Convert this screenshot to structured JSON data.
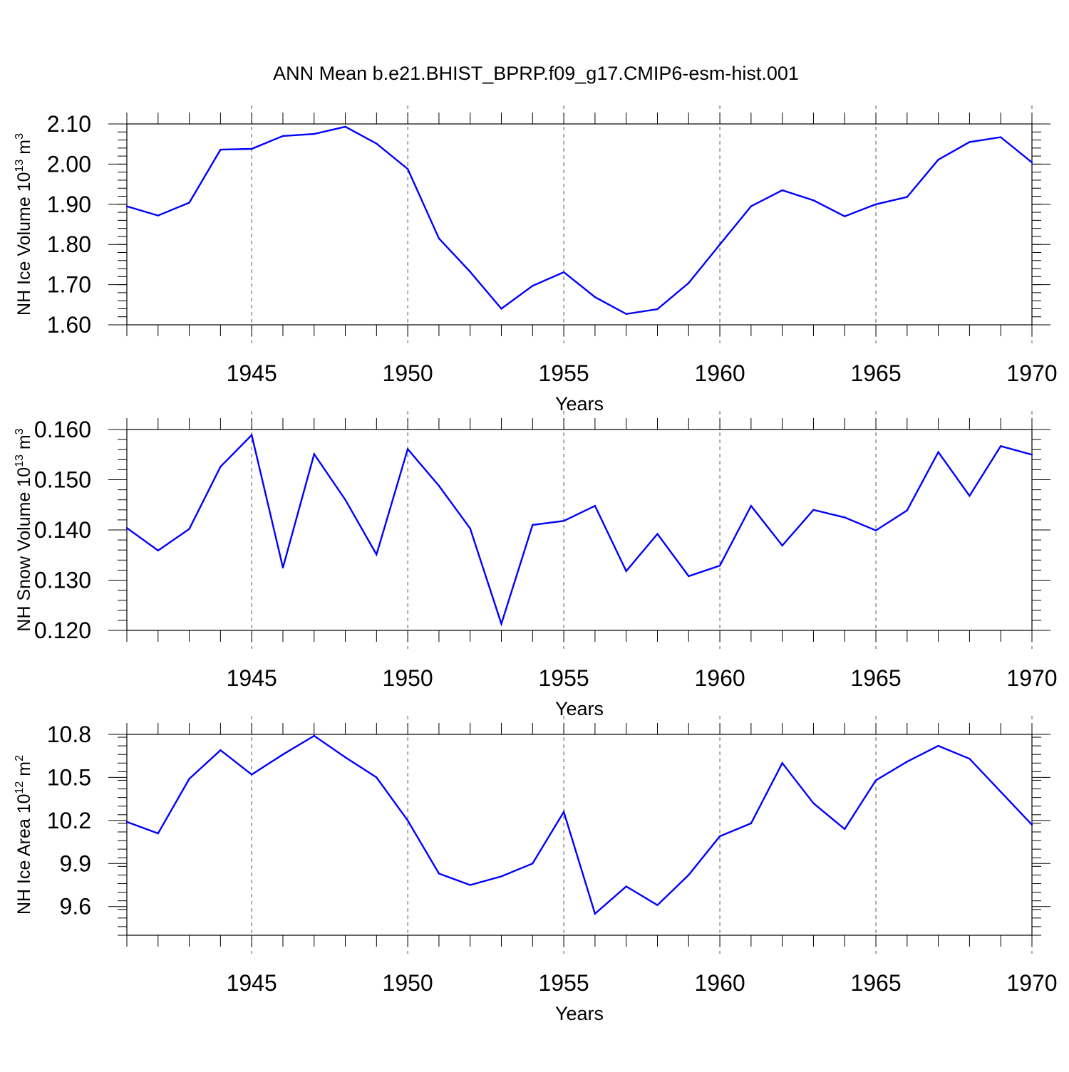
{
  "colors": {
    "series": "#0000ff",
    "axis": "#000000",
    "grid": "#555555"
  },
  "title": "ANN Mean b.e21.BHIST_BPRP.f09_g17.CMIP6-esm-hist.001",
  "chart_data": [
    {
      "type": "line",
      "ylabel_main": "NH Ice Volume 10",
      "ylabel_exp": "13",
      "ylabel_unit": " m",
      "ylabel_unit_exp": "3",
      "xlabel": "Years",
      "xlim": [
        1941,
        1970
      ],
      "ylim": [
        1.6,
        2.1
      ],
      "x_ticks": [
        "1945",
        "1950",
        "1955",
        "1960",
        "1965",
        "1970"
      ],
      "y_ticks": [
        "1.60",
        "1.70",
        "1.80",
        "1.90",
        "2.00",
        "2.10"
      ],
      "y_minor_step": 0.02,
      "grid": "vertical dashed at major x ticks",
      "x": [
        1941,
        1942,
        1943,
        1944,
        1945,
        1946,
        1947,
        1948,
        1949,
        1950,
        1951,
        1952,
        1953,
        1954,
        1955,
        1956,
        1957,
        1958,
        1959,
        1960,
        1961,
        1962,
        1963,
        1964,
        1965,
        1966,
        1967,
        1968,
        1969,
        1970
      ],
      "values": [
        1.895,
        1.872,
        1.904,
        2.036,
        2.038,
        2.07,
        2.075,
        2.093,
        2.051,
        1.988,
        1.815,
        1.732,
        1.64,
        1.697,
        1.731,
        1.669,
        1.627,
        1.639,
        1.704,
        1.8,
        1.895,
        1.935,
        1.91,
        1.87,
        1.9,
        1.918,
        2.011,
        2.055,
        2.067,
        2.004
      ]
    },
    {
      "type": "line",
      "ylabel_main": "NH Snow Volume 10",
      "ylabel_exp": "13",
      "ylabel_unit": " m",
      "ylabel_unit_exp": "3",
      "xlabel": "Years",
      "xlim": [
        1941,
        1970
      ],
      "ylim": [
        0.12,
        0.16
      ],
      "x_ticks": [
        "1945",
        "1950",
        "1955",
        "1960",
        "1965",
        "1970"
      ],
      "y_ticks": [
        "0.120",
        "0.130",
        "0.140",
        "0.150",
        "0.160"
      ],
      "y_minor_step": 0.002,
      "grid": "vertical dashed at major x ticks",
      "x": [
        1941,
        1942,
        1943,
        1944,
        1945,
        1946,
        1947,
        1948,
        1949,
        1950,
        1951,
        1952,
        1953,
        1954,
        1955,
        1956,
        1957,
        1958,
        1959,
        1960,
        1961,
        1962,
        1963,
        1964,
        1965,
        1966,
        1967,
        1968,
        1969,
        1970
      ],
      "values": [
        0.1404,
        0.1359,
        0.1402,
        0.1526,
        0.1589,
        0.1325,
        0.1551,
        0.146,
        0.1351,
        0.1561,
        0.1488,
        0.1403,
        0.1213,
        0.141,
        0.1418,
        0.1448,
        0.1318,
        0.1392,
        0.1308,
        0.1329,
        0.1448,
        0.1369,
        0.144,
        0.1425,
        0.1399,
        0.1439,
        0.1555,
        0.1468,
        0.1567,
        0.155
      ]
    },
    {
      "type": "line",
      "ylabel_main": "NH Ice Area 10",
      "ylabel_exp": "12",
      "ylabel_unit": " m",
      "ylabel_unit_exp": "2",
      "xlabel": "Years",
      "xlim": [
        1941,
        1970
      ],
      "ylim": [
        9.4,
        10.8
      ],
      "x_ticks": [
        "1945",
        "1950",
        "1955",
        "1960",
        "1965",
        "1970"
      ],
      "y_ticks": [
        "9.6",
        "9.9",
        "10.2",
        "10.5",
        "10.8"
      ],
      "y_tick_values": [
        9.6,
        9.9,
        10.2,
        10.5,
        10.8
      ],
      "y_minor_step": 0.06,
      "grid": "vertical dashed at major x ticks",
      "x": [
        1941,
        1942,
        1943,
        1944,
        1945,
        1946,
        1947,
        1948,
        1949,
        1950,
        1951,
        1952,
        1953,
        1954,
        1955,
        1956,
        1957,
        1958,
        1959,
        1960,
        1961,
        1962,
        1963,
        1964,
        1965,
        1966,
        1967,
        1968,
        1969,
        1970
      ],
      "values": [
        10.19,
        10.11,
        10.49,
        10.69,
        10.52,
        10.66,
        10.79,
        10.64,
        10.5,
        10.2,
        9.83,
        9.75,
        9.81,
        9.9,
        10.26,
        9.55,
        9.74,
        9.61,
        9.82,
        10.09,
        10.18,
        10.6,
        10.32,
        10.14,
        10.48,
        10.61,
        10.72,
        10.63,
        10.4,
        10.17
      ]
    }
  ]
}
